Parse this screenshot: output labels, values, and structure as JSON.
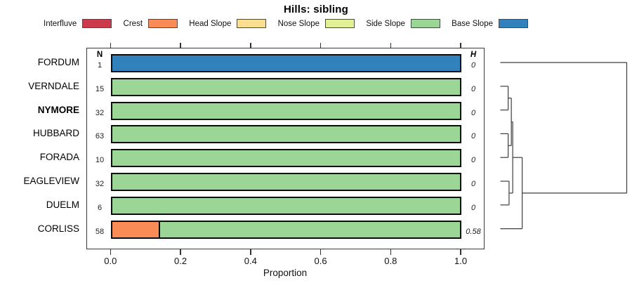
{
  "title": "Hills: sibling",
  "legend": {
    "items": [
      {
        "label": "Interfluve",
        "color": "#cc3a4e"
      },
      {
        "label": "Crest",
        "color": "#f98b56"
      },
      {
        "label": "Head Slope",
        "color": "#fbdf90"
      },
      {
        "label": "Nose Slope",
        "color": "#e2f096"
      },
      {
        "label": "Side Slope",
        "color": "#9cd696"
      },
      {
        "label": "Base Slope",
        "color": "#3181bc"
      }
    ]
  },
  "columns": {
    "n_header": "N",
    "h_header": "H"
  },
  "x_axis": {
    "label": "Proportion",
    "ticks": [
      "0.0",
      "0.2",
      "0.4",
      "0.6",
      "0.8",
      "1.0"
    ],
    "tick_values": [
      0,
      0.2,
      0.4,
      0.6,
      0.8,
      1.0
    ]
  },
  "chart_data": {
    "type": "bar",
    "orientation": "horizontal-stacked",
    "title": "Hills: sibling",
    "xlabel": "Proportion",
    "xlim": [
      0,
      1
    ],
    "grid": false,
    "legend_position": "top",
    "categories": [
      "Interfluve",
      "Crest",
      "Head Slope",
      "Nose Slope",
      "Side Slope",
      "Base Slope"
    ],
    "rows": [
      {
        "name": "FORDUM",
        "bold": false,
        "n": "1",
        "h": "0",
        "segments": [
          {
            "cat": "Base Slope",
            "p": 1.0
          }
        ]
      },
      {
        "name": "VERNDALE",
        "bold": false,
        "n": "15",
        "h": "0",
        "segments": [
          {
            "cat": "Side Slope",
            "p": 1.0
          }
        ]
      },
      {
        "name": "NYMORE",
        "bold": true,
        "n": "32",
        "h": "0",
        "segments": [
          {
            "cat": "Side Slope",
            "p": 1.0
          }
        ]
      },
      {
        "name": "HUBBARD",
        "bold": false,
        "n": "63",
        "h": "0",
        "segments": [
          {
            "cat": "Side Slope",
            "p": 1.0
          }
        ]
      },
      {
        "name": "FORADA",
        "bold": false,
        "n": "10",
        "h": "0",
        "segments": [
          {
            "cat": "Side Slope",
            "p": 1.0
          }
        ]
      },
      {
        "name": "EAGLEVIEW",
        "bold": false,
        "n": "32",
        "h": "0",
        "segments": [
          {
            "cat": "Side Slope",
            "p": 1.0
          }
        ]
      },
      {
        "name": "DUELM",
        "bold": false,
        "n": "6",
        "h": "0",
        "segments": [
          {
            "cat": "Side Slope",
            "p": 1.0
          }
        ]
      },
      {
        "name": "CORLISS",
        "bold": false,
        "n": "58",
        "h": "0.58",
        "segments": [
          {
            "cat": "Crest",
            "p": 0.14
          },
          {
            "cat": "Side Slope",
            "p": 0.86
          }
        ]
      }
    ]
  },
  "dendrogram": {
    "leaf_order": [
      "FORDUM",
      "VERNDALE",
      "NYMORE",
      "HUBBARD",
      "FORADA",
      "EAGLEVIEW",
      "DUELM",
      "CORLISS"
    ],
    "line_color": "#3d3d3d",
    "merges": [
      {
        "id": "M0",
        "a": "L1",
        "b": "L2",
        "h": 0.062
      },
      {
        "id": "M1",
        "a": "L3",
        "b": "L4",
        "h": 0.062
      },
      {
        "id": "M2",
        "a": "M0",
        "b": "M1",
        "h": 0.087
      },
      {
        "id": "M3",
        "a": "L5",
        "b": "L6",
        "h": 0.069
      },
      {
        "id": "M4",
        "a": "M2",
        "b": "M3",
        "h": 0.098
      },
      {
        "id": "M5",
        "a": "M4",
        "b": "L7",
        "h": 0.173
      },
      {
        "id": "M6",
        "a": "L0",
        "b": "M5",
        "h": 1.0
      }
    ]
  }
}
